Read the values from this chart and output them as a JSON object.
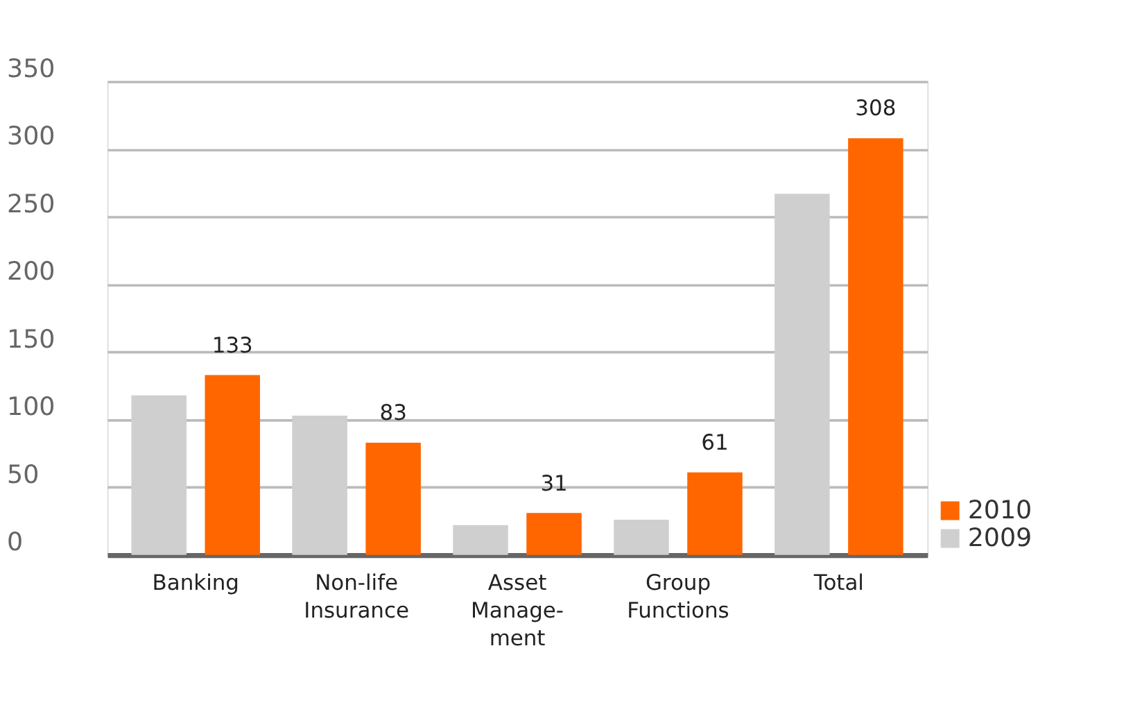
{
  "chart_data": {
    "type": "bar",
    "categories": [
      "Banking",
      "Non-life\nInsurance",
      "Asset\nManage-\nment",
      "Group\nFunctions",
      "Total"
    ],
    "series": [
      {
        "name": "2009",
        "color": "#cfcfcf",
        "values": [
          118,
          103,
          22,
          26,
          267
        ]
      },
      {
        "name": "2010",
        "color": "#ff6600",
        "values": [
          133,
          83,
          31,
          61,
          308
        ],
        "value_labels": [
          "133",
          "83",
          "31",
          "61",
          "308"
        ]
      }
    ],
    "ylim": [
      0,
      350
    ],
    "yticks": [
      0,
      50,
      100,
      150,
      200,
      250,
      300,
      350
    ],
    "grid": "y",
    "legend": "bottom right"
  }
}
